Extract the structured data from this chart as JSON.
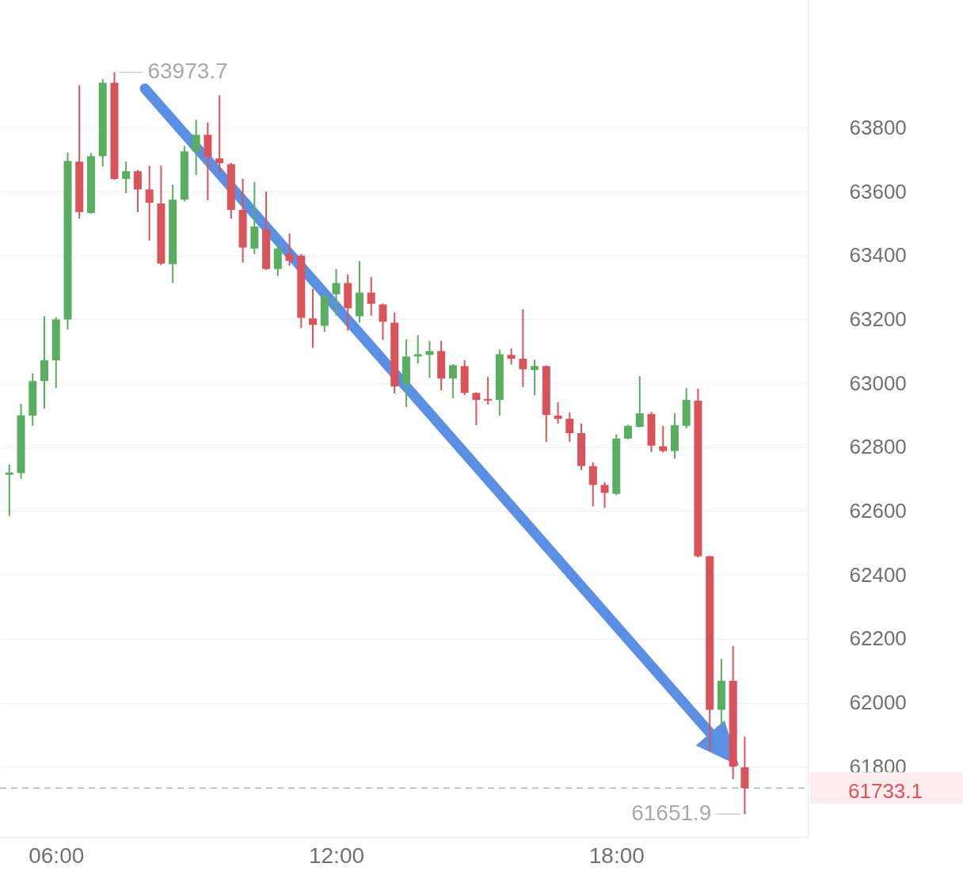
{
  "chart_data": {
    "type": "candlestick",
    "x": [
      5,
      5.25,
      5.5,
      5.75,
      6,
      6.25,
      6.5,
      6.75,
      7,
      7.25,
      7.5,
      7.75,
      8,
      8.25,
      8.5,
      8.75,
      9,
      9.25,
      9.5,
      9.75,
      10,
      10.25,
      10.5,
      10.75,
      11,
      11.25,
      11.5,
      11.75,
      12,
      12.25,
      12.5,
      12.75,
      13,
      13.25,
      13.5,
      13.75,
      14,
      14.25,
      14.5,
      14.75,
      15,
      15.25,
      15.5,
      15.75,
      16,
      16.25,
      16.5,
      16.75,
      17,
      17.25,
      17.5,
      17.75,
      18,
      18.25,
      18.5,
      18.75,
      19,
      19.25,
      19.5,
      19.75,
      20,
      20.25,
      20.5,
      20.75
    ],
    "ohlc": [
      [
        62714,
        62746,
        62585,
        62721
      ],
      [
        62719,
        62936,
        62701,
        62900
      ],
      [
        62899,
        63032,
        62867,
        63007
      ],
      [
        63007,
        63210,
        62921,
        63072
      ],
      [
        63072,
        63207,
        62985,
        63200
      ],
      [
        63200,
        63723,
        63168,
        63696
      ],
      [
        63694,
        63933,
        63516,
        63536
      ],
      [
        63533,
        63721,
        63531,
        63711
      ],
      [
        63711,
        63953,
        63679,
        63941
      ],
      [
        63941,
        63973.7,
        63637,
        63640
      ],
      [
        63640,
        63694,
        63595,
        63664
      ],
      [
        63664,
        63668,
        63536,
        63607
      ],
      [
        63607,
        63681,
        63447,
        63565
      ],
      [
        63563,
        63681,
        63370,
        63375
      ],
      [
        63373,
        63622,
        63314,
        63575
      ],
      [
        63575,
        63743,
        63570,
        63726
      ],
      [
        63726,
        63825,
        63652,
        63778
      ],
      [
        63778,
        63817,
        63573,
        63709
      ],
      [
        63704,
        63901,
        63660,
        63689
      ],
      [
        63686,
        63690,
        63516,
        63543
      ],
      [
        63543,
        63640,
        63378,
        63425
      ],
      [
        63422,
        63630,
        63405,
        63491
      ],
      [
        63482,
        63600,
        63355,
        63358
      ],
      [
        63358,
        63435,
        63336,
        63422
      ],
      [
        63405,
        63469,
        63368,
        63383
      ],
      [
        63400,
        63405,
        63173,
        63205
      ],
      [
        63203,
        63296,
        63111,
        63183
      ],
      [
        63180,
        63280,
        63161,
        63274
      ],
      [
        63279,
        63358,
        63212,
        63314
      ],
      [
        63314,
        63341,
        63165,
        63235
      ],
      [
        63210,
        63383,
        63190,
        63284
      ],
      [
        63284,
        63333,
        63212,
        63249
      ],
      [
        63247,
        63250,
        63136,
        63193
      ],
      [
        63190,
        63222,
        62968,
        62990
      ],
      [
        62998,
        63138,
        62926,
        63084
      ],
      [
        63084,
        63151,
        63062,
        63091
      ],
      [
        63089,
        63133,
        63017,
        63101
      ],
      [
        63101,
        63133,
        62978,
        63015
      ],
      [
        63015,
        63060,
        62953,
        63057
      ],
      [
        63054,
        63072,
        62963,
        62970
      ],
      [
        62970,
        62972,
        62869,
        62948
      ],
      [
        62951,
        63020,
        62933,
        62946
      ],
      [
        62948,
        63106,
        62899,
        63091
      ],
      [
        63089,
        63109,
        63059,
        63077
      ],
      [
        63077,
        63232,
        62988,
        63044
      ],
      [
        63042,
        63074,
        62963,
        63054
      ],
      [
        63054,
        63056,
        62817,
        62901
      ],
      [
        62899,
        62941,
        62874,
        62889
      ],
      [
        62889,
        62909,
        62817,
        62844
      ],
      [
        62844,
        62874,
        62728,
        62741
      ],
      [
        62741,
        62753,
        62615,
        62682
      ],
      [
        62682,
        62691,
        62610,
        62657
      ],
      [
        62654,
        62840,
        62650,
        62827
      ],
      [
        62827,
        62870,
        62825,
        62867
      ],
      [
        62864,
        63022,
        62862,
        62906
      ],
      [
        62904,
        62911,
        62785,
        62805
      ],
      [
        62803,
        62867,
        62783,
        62788
      ],
      [
        62788,
        62906,
        62765,
        62869
      ],
      [
        62867,
        62985,
        62859,
        62948
      ],
      [
        62946,
        62983,
        62455,
        62459
      ],
      [
        62459,
        62461,
        61850,
        61978
      ],
      [
        61978,
        62138,
        61924,
        62069
      ],
      [
        62069,
        62178,
        61761,
        61800
      ],
      [
        61798,
        61894,
        61651.9,
        61733.1
      ]
    ],
    "colors": [
      "#5aae61",
      "#5aae61",
      "#5aae61",
      "#5aae61",
      "#5aae61",
      "#5aae61",
      "#d9535b",
      "#5aae61",
      "#5aae61",
      "#d9535b",
      "#5aae61",
      "#d9535b",
      "#d9535b",
      "#d9535b",
      "#5aae61",
      "#5aae61",
      "#5aae61",
      "#d9535b",
      "#d9535b",
      "#d9535b",
      "#d9535b",
      "#5aae61",
      "#d9535b",
      "#5aae61",
      "#d9535b",
      "#d9535b",
      "#d9535b",
      "#5aae61",
      "#5aae61",
      "#d9535b",
      "#5aae61",
      "#d9535b",
      "#d9535b",
      "#d9535b",
      "#5aae61",
      "#5aae61",
      "#5aae61",
      "#d9535b",
      "#5aae61",
      "#d9535b",
      "#d9535b",
      "#d9535b",
      "#5aae61",
      "#d9535b",
      "#d9535b",
      "#5aae61",
      "#d9535b",
      "#d9535b",
      "#d9535b",
      "#d9535b",
      "#d9535b",
      "#d9535b",
      "#5aae61",
      "#5aae61",
      "#5aae61",
      "#d9535b",
      "#d9535b",
      "#5aae61",
      "#5aae61",
      "#d9535b",
      "#d9535b",
      "#5aae61",
      "#d9535b",
      "#d9535b"
    ],
    "xlim": [
      4.8,
      22.1
    ],
    "ylim": [
      61580,
      64200
    ],
    "xticks": [
      {
        "value": 6,
        "label": "06:00"
      },
      {
        "value": 12,
        "label": "12:00"
      },
      {
        "value": 18,
        "label": "18:00"
      }
    ],
    "yticks": [
      61800,
      62000,
      62200,
      62400,
      62600,
      62800,
      63000,
      63200,
      63400,
      63600,
      63800
    ],
    "grid": "y",
    "ref_lines": [
      {
        "axis": "y",
        "value": 61733.1,
        "label": "61733.1",
        "color": "#b3b3b3",
        "line_style": "dashed"
      }
    ],
    "annotations": [
      {
        "text": "63973.7",
        "x": 7.25,
        "y": 63973.7
      },
      {
        "text": "61651.9",
        "x": 20.75,
        "y": 61651.9
      }
    ]
  }
}
